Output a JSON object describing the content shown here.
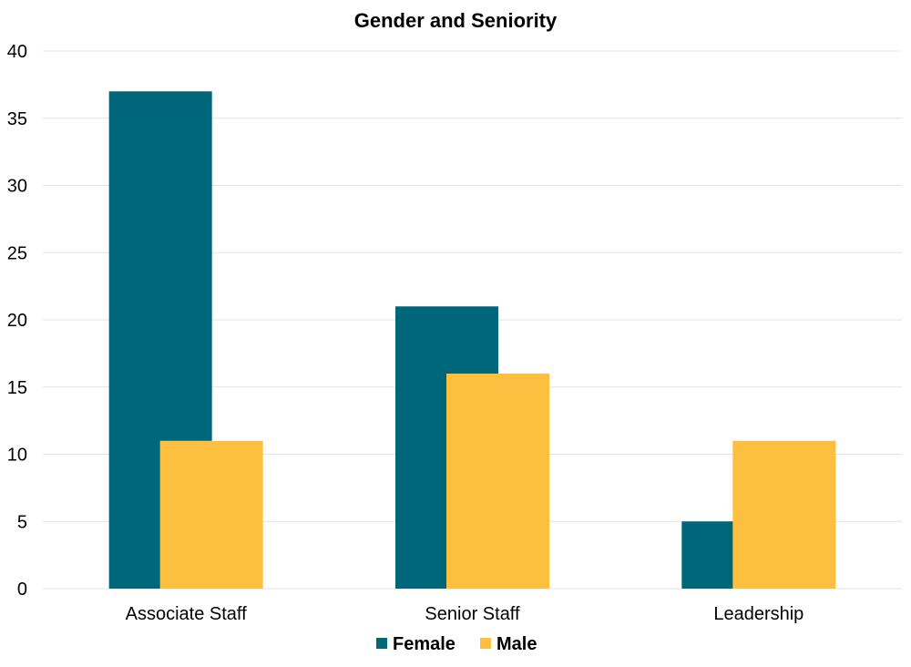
{
  "chart_data": {
    "type": "bar",
    "title": "Gender and Seniority",
    "xlabel": "",
    "ylabel": "",
    "categories": [
      "Associate Staff",
      "Senior Staff",
      "Leadership"
    ],
    "series": [
      {
        "name": "Female",
        "values": [
          37,
          21,
          5
        ],
        "color": "#00667a"
      },
      {
        "name": "Male",
        "values": [
          11,
          16,
          11
        ],
        "color": "#fdbf40"
      }
    ],
    "ylim": [
      0,
      40
    ],
    "yticks": [
      0,
      5,
      10,
      15,
      20,
      25,
      30,
      35,
      40
    ],
    "grid": true,
    "legend_position": "bottom-center",
    "bar_style": "overlapping"
  }
}
